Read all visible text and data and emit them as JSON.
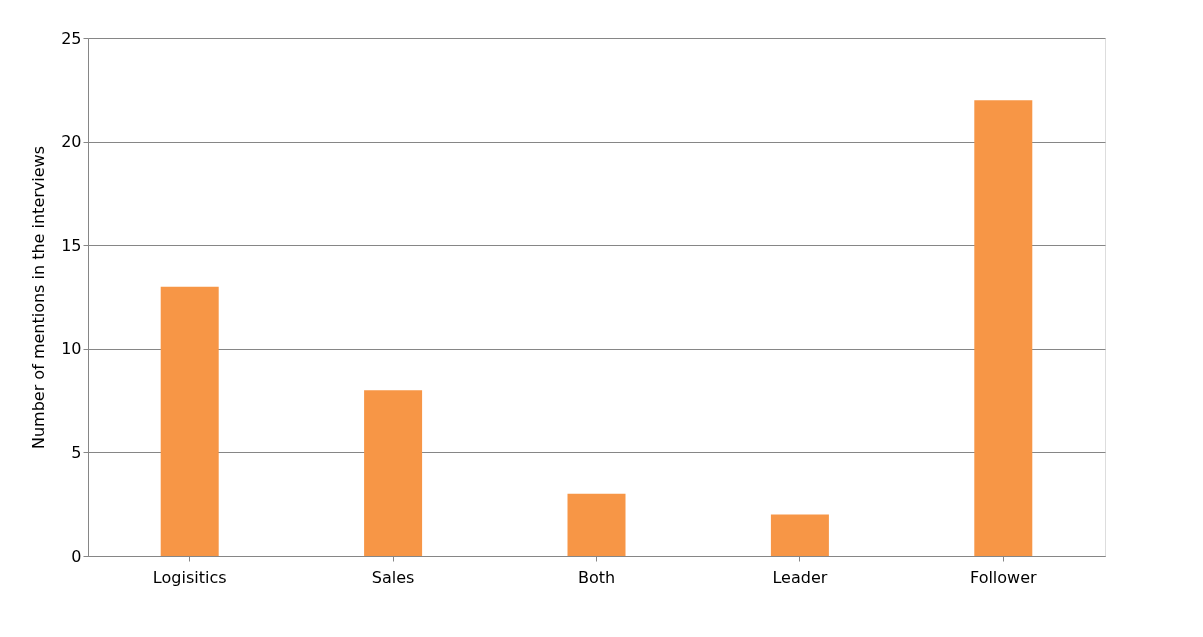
{
  "chart_data": {
    "type": "bar",
    "ylabel": "Number of mentions in the interviews",
    "categories": [
      "Logisitics",
      "Sales",
      "Both",
      "Leader",
      "Follower"
    ],
    "values": [
      13,
      8,
      3,
      2,
      22
    ],
    "color": "#f79646",
    "ylim": [
      0,
      25
    ],
    "yticks": [
      0,
      5,
      10,
      15,
      20,
      25
    ],
    "grid": "y"
  }
}
